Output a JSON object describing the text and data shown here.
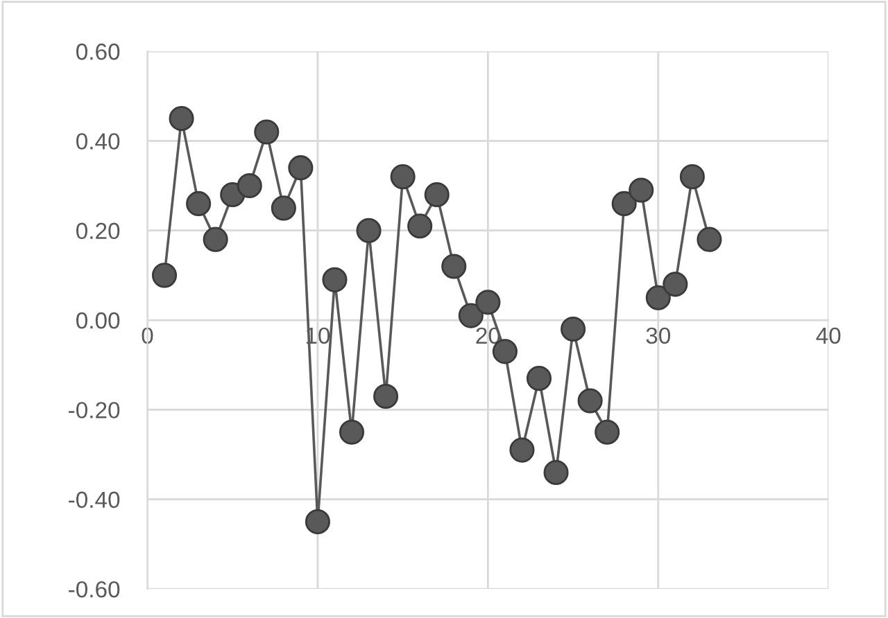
{
  "chart_data": {
    "type": "line",
    "marker": "circle",
    "line_style": "solid",
    "grid": true,
    "legend": false,
    "x": [
      1,
      2,
      3,
      4,
      5,
      6,
      7,
      8,
      9,
      10,
      11,
      12,
      13,
      14,
      15,
      16,
      17,
      18,
      19,
      20,
      21,
      22,
      23,
      24,
      25,
      26,
      27,
      28,
      29,
      30,
      31,
      32,
      33
    ],
    "series": [
      {
        "color": "#595959",
        "values": [
          0.1,
          0.45,
          0.26,
          0.18,
          0.28,
          0.3,
          0.42,
          0.25,
          0.34,
          -0.45,
          0.09,
          -0.25,
          0.2,
          -0.17,
          0.32,
          0.21,
          0.28,
          0.12,
          0.01,
          0.04,
          -0.07,
          -0.29,
          -0.13,
          -0.34,
          -0.02,
          -0.18,
          -0.25,
          0.26,
          0.29,
          0.05,
          0.08,
          0.32,
          0.18
        ]
      }
    ],
    "xlim": [
      0,
      40
    ],
    "xticks": [
      0,
      10,
      20,
      30,
      40
    ],
    "ylim": [
      -0.6,
      0.6
    ],
    "yticks": [
      {
        "value": -0.6,
        "label": "-0.60"
      },
      {
        "value": -0.4,
        "label": "-0.40"
      },
      {
        "value": -0.2,
        "label": "-0.20"
      },
      {
        "value": 0,
        "label": "0.00"
      },
      {
        "value": 0.2,
        "label": "0.20"
      },
      {
        "value": 0.4,
        "label": "0.40"
      },
      {
        "value": 0.6,
        "label": "0.60"
      }
    ]
  }
}
